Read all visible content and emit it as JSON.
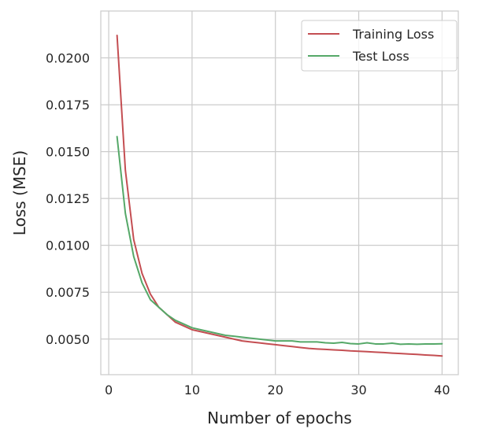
{
  "chart_data": {
    "type": "line",
    "title": "",
    "xlabel": "Number of epochs",
    "ylabel": "Loss (MSE)",
    "xlim": [
      -0.95,
      41.95
    ],
    "ylim": [
      0.0031,
      0.0225
    ],
    "xticks": [
      0,
      10,
      20,
      30,
      40
    ],
    "xtick_labels": [
      "0",
      "10",
      "20",
      "30",
      "40"
    ],
    "yticks": [
      0.005,
      0.0075,
      0.01,
      0.0125,
      0.015,
      0.0175,
      0.02
    ],
    "ytick_labels": [
      "0.0050",
      "0.0075",
      "0.0100",
      "0.0125",
      "0.0150",
      "0.0175",
      "0.0200"
    ],
    "grid": true,
    "legend_position": "top-right",
    "x": [
      1,
      2,
      3,
      4,
      5,
      6,
      7,
      8,
      9,
      10,
      11,
      12,
      13,
      14,
      15,
      16,
      17,
      18,
      19,
      20,
      21,
      22,
      23,
      24,
      25,
      26,
      27,
      28,
      29,
      30,
      31,
      32,
      33,
      34,
      35,
      36,
      37,
      38,
      39,
      40
    ],
    "series": [
      {
        "name": "Training Loss",
        "color": "#c44e52",
        "values": [
          0.0212,
          0.014,
          0.0103,
          0.0085,
          0.0074,
          0.0067,
          0.0063,
          0.0059,
          0.0057,
          0.0055,
          0.0054,
          0.0053,
          0.0052,
          0.0051,
          0.005,
          0.0049,
          0.00485,
          0.0048,
          0.00475,
          0.0047,
          0.00465,
          0.0046,
          0.00455,
          0.0045,
          0.00447,
          0.00445,
          0.00442,
          0.0044,
          0.00437,
          0.00435,
          0.00433,
          0.0043,
          0.00428,
          0.00425,
          0.00423,
          0.0042,
          0.00418,
          0.00415,
          0.00413,
          0.0041
        ]
      },
      {
        "name": "Test Loss",
        "color": "#55a868",
        "values": [
          0.0158,
          0.0117,
          0.0094,
          0.008,
          0.0071,
          0.0067,
          0.0063,
          0.006,
          0.0058,
          0.0056,
          0.0055,
          0.0054,
          0.0053,
          0.0052,
          0.00515,
          0.0051,
          0.00505,
          0.005,
          0.00495,
          0.0049,
          0.0049,
          0.0049,
          0.00485,
          0.00485,
          0.00485,
          0.0048,
          0.00478,
          0.00482,
          0.00476,
          0.00474,
          0.0048,
          0.00474,
          0.00474,
          0.00478,
          0.00472,
          0.00474,
          0.00472,
          0.00474,
          0.00474,
          0.00475
        ]
      }
    ]
  },
  "colors": {
    "grid": "#cccccc",
    "frame": "#cccccc",
    "text": "#262626"
  }
}
